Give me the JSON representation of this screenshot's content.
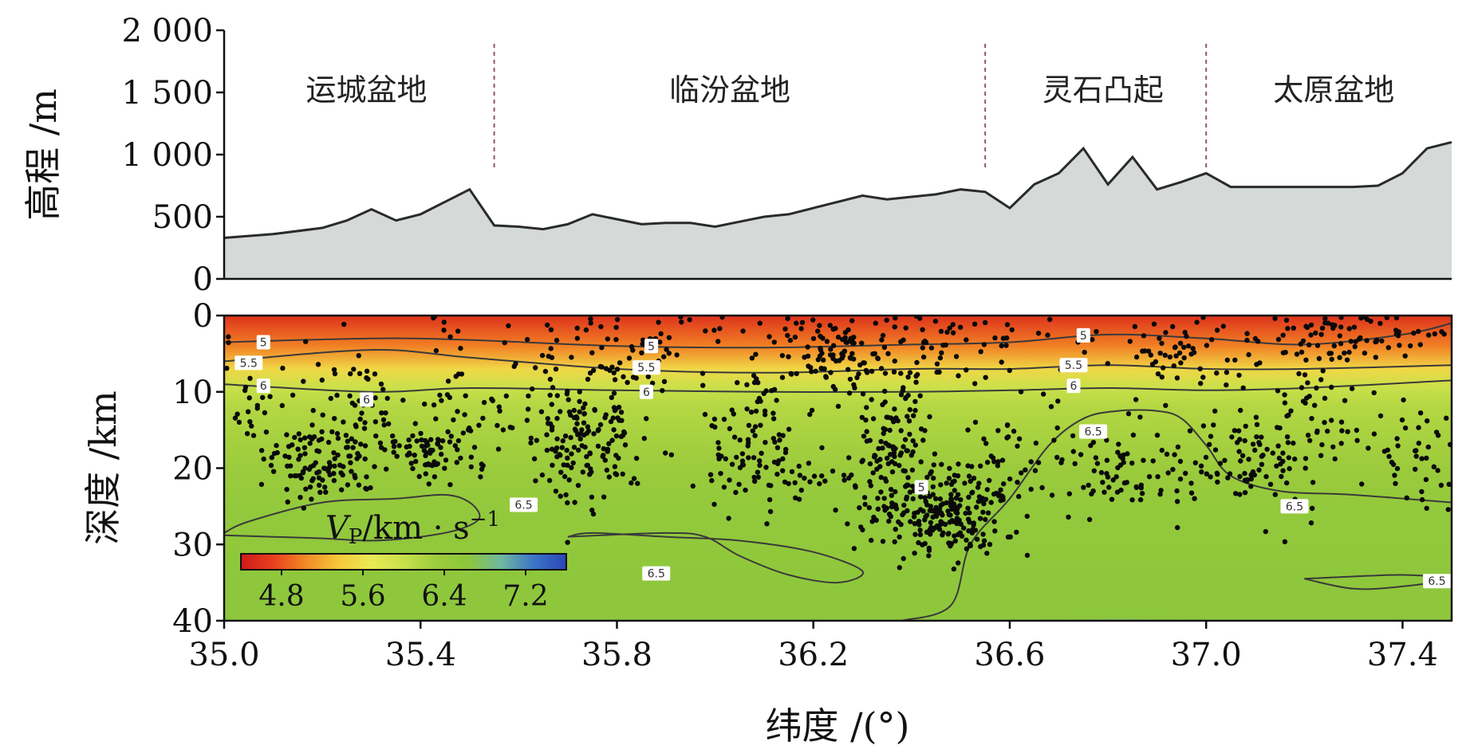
{
  "chart_data": [
    {
      "type": "area",
      "ylabel": "高程 /m",
      "yticks": [
        0,
        500,
        1000,
        1500,
        2000
      ],
      "ytick_labels": [
        "0",
        "500",
        "1 000",
        "1 500",
        "2 000"
      ],
      "ylim": [
        0,
        2000
      ],
      "xlim": [
        35.0,
        37.5
      ],
      "regions": [
        {
          "label": "运城盆地",
          "x": 35.29
        },
        {
          "label": "临汾盆地",
          "x": 36.03
        },
        {
          "label": "灵石凸起",
          "x": 36.79
        },
        {
          "label": "太原盆地",
          "x": 37.26
        }
      ],
      "boundaries": [
        35.55,
        36.55,
        37.0
      ],
      "elevation": {
        "x": [
          35.0,
          35.1,
          35.2,
          35.25,
          35.3,
          35.35,
          35.4,
          35.45,
          35.5,
          35.55,
          35.6,
          35.65,
          35.7,
          35.75,
          35.8,
          35.85,
          35.9,
          35.95,
          36.0,
          36.05,
          36.1,
          36.15,
          36.2,
          36.25,
          36.3,
          36.35,
          36.4,
          36.45,
          36.5,
          36.55,
          36.6,
          36.65,
          36.7,
          36.75,
          36.8,
          36.85,
          36.9,
          36.95,
          37.0,
          37.05,
          37.1,
          37.15,
          37.2,
          37.25,
          37.3,
          37.35,
          37.4,
          37.45,
          37.5
        ],
        "y": [
          330,
          360,
          410,
          470,
          560,
          470,
          520,
          620,
          720,
          430,
          420,
          400,
          440,
          520,
          480,
          440,
          450,
          450,
          420,
          460,
          500,
          520,
          570,
          620,
          670,
          640,
          660,
          680,
          720,
          700,
          570,
          760,
          850,
          1050,
          760,
          980,
          720,
          780,
          850,
          740,
          740,
          740,
          740,
          740,
          740,
          750,
          850,
          1050,
          1100
        ]
      }
    },
    {
      "type": "heatmap",
      "ylabel": "深度 /km",
      "xlabel": "纬度 /(°)",
      "yticks": [
        0,
        10,
        20,
        30,
        40
      ],
      "ylim": [
        0,
        40
      ],
      "xlim": [
        35.0,
        37.5
      ],
      "xticks": [
        35.0,
        35.4,
        35.8,
        36.2,
        36.6,
        37.0,
        37.4
      ],
      "xtick_labels": [
        "35.0",
        "35.4",
        "35.8",
        "36.2",
        "36.6",
        "37.0",
        "37.4"
      ],
      "colorbar": {
        "label_main": "V",
        "label_sub": "P",
        "label_rest": "/km · s",
        "label_sup": "−1",
        "range": [
          4.4,
          7.6
        ],
        "ticks": [
          4.8,
          5.6,
          6.4,
          7.2
        ],
        "tick_labels": [
          "4.8",
          "5.6",
          "6.4",
          "7.2"
        ],
        "colors": [
          "#cc1a1a",
          "#e8401e",
          "#f28a26",
          "#f5c83a",
          "#eaea55",
          "#c8e04a",
          "#9ccc3c",
          "#8cc63c",
          "#6fb8a0",
          "#3c74c8",
          "#2a46b4"
        ]
      },
      "velocity_profile": {
        "depth": [
          0,
          4,
          7,
          9.5,
          12,
          20,
          25,
          30,
          35,
          40
        ],
        "vp": [
          4.6,
          5.0,
          5.5,
          6.0,
          6.15,
          6.35,
          6.5,
          6.55,
          6.6,
          6.6
        ]
      },
      "contours": [
        {
          "value": 5,
          "label": "5",
          "x": [
            35.0,
            35.3,
            35.5,
            35.8,
            36.1,
            36.4,
            36.6,
            36.8,
            37.0,
            37.2,
            37.4,
            37.5
          ],
          "y": [
            3.5,
            3.0,
            3.2,
            4.0,
            4.2,
            3.8,
            3.5,
            2.5,
            3.0,
            3.8,
            2.5,
            1.0
          ]
        },
        {
          "value": 5.5,
          "label": "5.5",
          "x": [
            35.0,
            35.3,
            35.5,
            35.8,
            36.1,
            36.4,
            36.6,
            36.8,
            37.0,
            37.2,
            37.5
          ],
          "y": [
            6.0,
            4.5,
            5.5,
            7.0,
            7.5,
            7.0,
            7.0,
            6.5,
            7.0,
            7.0,
            6.5
          ]
        },
        {
          "value": 6,
          "label": "6",
          "x": [
            35.0,
            35.3,
            35.5,
            35.8,
            36.1,
            36.4,
            36.6,
            36.8,
            37.0,
            37.2,
            37.5
          ],
          "y": [
            9.0,
            10.0,
            9.5,
            9.8,
            10.0,
            10.0,
            9.8,
            9.5,
            9.8,
            9.5,
            8.5
          ]
        },
        {
          "value": 6.5,
          "label": "6.5",
          "x": [
            35.0,
            35.05,
            35.2,
            35.35,
            35.45,
            35.5,
            35.52,
            35.48,
            35.4,
            35.3,
            35.2,
            35.1,
            35.0
          ],
          "y": [
            28.5,
            27.0,
            24.5,
            24.0,
            23.5,
            24.5,
            26.5,
            28.0,
            29.0,
            29.5,
            29.2,
            29.0,
            28.8
          ]
        },
        {
          "value": 6.5,
          "label": "6.5",
          "x": [
            35.7,
            35.9,
            35.98,
            36.05,
            36.15,
            36.25,
            36.3,
            36.2,
            36.05,
            35.9,
            35.75,
            35.7
          ],
          "y": [
            29.0,
            28.5,
            29.0,
            31.5,
            34.0,
            35.0,
            33.5,
            31.0,
            29.5,
            29.0,
            28.5,
            29.0
          ]
        },
        {
          "value": 6.5,
          "label": "6.5",
          "x": [
            36.38,
            36.48,
            36.52,
            36.6,
            36.68,
            36.75,
            36.82,
            36.9,
            36.95,
            37.0,
            37.05,
            37.15,
            37.3,
            37.5
          ],
          "y": [
            40.0,
            38.0,
            30.0,
            24.0,
            17.0,
            13.5,
            12.5,
            12.5,
            13.5,
            17.0,
            21.0,
            23.0,
            23.5,
            24.5
          ]
        },
        {
          "value": 6.5,
          "label": "6.5",
          "x": [
            37.2,
            37.3,
            37.4,
            37.5,
            37.4,
            37.3,
            37.2
          ],
          "y": [
            34.5,
            34.2,
            34.0,
            34.5,
            35.5,
            35.8,
            34.5
          ]
        }
      ],
      "contour_labels": [
        {
          "text": "5",
          "x": 35.08,
          "y": 3.5
        },
        {
          "text": "5.5",
          "x": 35.05,
          "y": 6.2
        },
        {
          "text": "6",
          "x": 35.08,
          "y": 9.2
        },
        {
          "text": "5",
          "x": 35.87,
          "y": 4.0
        },
        {
          "text": "5.5",
          "x": 35.86,
          "y": 6.8
        },
        {
          "text": "6",
          "x": 35.86,
          "y": 10.0
        },
        {
          "text": "6",
          "x": 35.29,
          "y": 11.0
        },
        {
          "text": "5",
          "x": 36.75,
          "y": 2.6
        },
        {
          "text": "5.5",
          "x": 36.73,
          "y": 6.5
        },
        {
          "text": "6",
          "x": 36.73,
          "y": 9.2
        },
        {
          "text": "6.5",
          "x": 36.77,
          "y": 15.2
        },
        {
          "text": "6.5",
          "x": 35.61,
          "y": 24.8
        },
        {
          "text": "6.5",
          "x": 35.88,
          "y": 33.8
        },
        {
          "text": "6.5",
          "x": 37.18,
          "y": 25.0
        },
        {
          "text": "6.5",
          "x": 37.47,
          "y": 34.8
        },
        {
          "text": "5",
          "x": 36.42,
          "y": 22.5
        }
      ],
      "earthquake_clusters": [
        {
          "x": 35.2,
          "y": 19.0,
          "sx": 0.06,
          "sy": 2.5,
          "n": 110
        },
        {
          "x": 35.27,
          "y": 12.0,
          "sx": 0.05,
          "sy": 4.0,
          "n": 50
        },
        {
          "x": 35.05,
          "y": 12.0,
          "sx": 0.04,
          "sy": 4.0,
          "n": 30
        },
        {
          "x": 35.42,
          "y": 18.0,
          "sx": 0.05,
          "sy": 1.8,
          "n": 70
        },
        {
          "x": 35.48,
          "y": 12.0,
          "sx": 0.05,
          "sy": 3.5,
          "n": 35
        },
        {
          "x": 35.73,
          "y": 15.0,
          "sx": 0.07,
          "sy": 4.5,
          "n": 170
        },
        {
          "x": 35.87,
          "y": 6.0,
          "sx": 0.02,
          "sy": 2.0,
          "n": 25
        },
        {
          "x": 35.75,
          "y": 4.0,
          "sx": 0.12,
          "sy": 2.0,
          "n": 35
        },
        {
          "x": 36.05,
          "y": 18.0,
          "sx": 0.06,
          "sy": 3.0,
          "n": 60
        },
        {
          "x": 36.1,
          "y": 9.0,
          "sx": 0.06,
          "sy": 4.0,
          "n": 35
        },
        {
          "x": 36.25,
          "y": 5.0,
          "sx": 0.06,
          "sy": 2.5,
          "n": 80
        },
        {
          "x": 36.35,
          "y": 19.0,
          "sx": 0.04,
          "sy": 6.0,
          "n": 160
        },
        {
          "x": 36.47,
          "y": 26.0,
          "sx": 0.05,
          "sy": 2.5,
          "n": 150
        },
        {
          "x": 36.55,
          "y": 22.0,
          "sx": 0.04,
          "sy": 5.0,
          "n": 60
        },
        {
          "x": 36.45,
          "y": 5.0,
          "sx": 0.08,
          "sy": 2.5,
          "n": 40
        },
        {
          "x": 36.65,
          "y": 17.0,
          "sx": 0.06,
          "sy": 6.0,
          "n": 35
        },
        {
          "x": 36.85,
          "y": 20.0,
          "sx": 0.08,
          "sy": 3.0,
          "n": 80
        },
        {
          "x": 36.95,
          "y": 5.0,
          "sx": 0.08,
          "sy": 2.5,
          "n": 55
        },
        {
          "x": 37.1,
          "y": 18.0,
          "sx": 0.07,
          "sy": 4.0,
          "n": 80
        },
        {
          "x": 37.2,
          "y": 11.0,
          "sx": 0.04,
          "sy": 5.0,
          "n": 50
        },
        {
          "x": 37.3,
          "y": 3.0,
          "sx": 0.12,
          "sy": 1.8,
          "n": 80
        },
        {
          "x": 37.4,
          "y": 17.0,
          "sx": 0.07,
          "sy": 4.0,
          "n": 55
        },
        {
          "x": 36.2,
          "y": 1.5,
          "sx": 0.4,
          "sy": 1.2,
          "n": 60
        },
        {
          "x": 36.15,
          "y": 22.0,
          "sx": 0.05,
          "sy": 2.5,
          "n": 30
        }
      ]
    }
  ]
}
